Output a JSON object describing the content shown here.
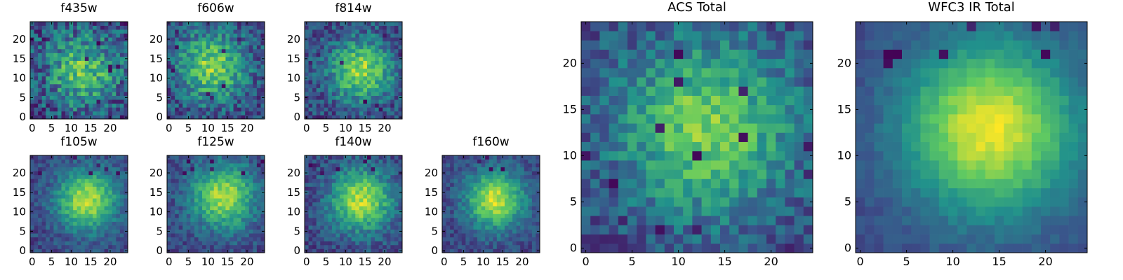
{
  "figure": {
    "colormap": "viridis",
    "colormap_stops": [
      "#440154",
      "#3b528b",
      "#21918c",
      "#5ec962",
      "#fde725"
    ],
    "axis_ticks": {
      "x": [
        0,
        5,
        10,
        15,
        20
      ],
      "y": [
        0,
        5,
        10,
        15,
        20
      ],
      "extent": [
        -0.5,
        24.5
      ]
    }
  },
  "chart_data": [
    {
      "id": "f435w",
      "type": "heatmap",
      "title": "f435w",
      "grid_size": [
        25,
        25
      ],
      "xlim": [
        -0.5,
        24.5
      ],
      "ylim": [
        -0.5,
        24.5
      ],
      "xticks": [
        0,
        5,
        10,
        15,
        20
      ],
      "yticks": [
        0,
        5,
        10,
        15,
        20
      ],
      "seed": 11,
      "profile": {
        "peak": 0.72,
        "center": [
          13,
          12
        ],
        "sigma": 40,
        "noise": 0.46,
        "dark_pixels": 10,
        "dark_region": "random"
      }
    },
    {
      "id": "f606w",
      "type": "heatmap",
      "title": "f606w",
      "grid_size": [
        25,
        25
      ],
      "xlim": [
        -0.5,
        24.5
      ],
      "ylim": [
        -0.5,
        24.5
      ],
      "xticks": [
        0,
        5,
        10,
        15,
        20
      ],
      "yticks": [
        0,
        5,
        10,
        15,
        20
      ],
      "seed": 23,
      "profile": {
        "peak": 0.8,
        "center": [
          11,
          13
        ],
        "sigma": 38,
        "noise": 0.38,
        "dark_pixels": 9,
        "dark_region": "random"
      }
    },
    {
      "id": "f814w",
      "type": "heatmap",
      "title": "f814w",
      "grid_size": [
        25,
        25
      ],
      "xlim": [
        -0.5,
        24.5
      ],
      "ylim": [
        -0.5,
        24.5
      ],
      "xticks": [
        0,
        5,
        10,
        15,
        20
      ],
      "yticks": [
        0,
        5,
        10,
        15,
        20
      ],
      "seed": 37,
      "profile": {
        "peak": 0.82,
        "center": [
          14,
          12
        ],
        "sigma": 32,
        "noise": 0.34,
        "dark_pixels": 8,
        "dark_region": "random"
      }
    },
    {
      "id": "f105w",
      "type": "heatmap",
      "title": "f105w",
      "grid_size": [
        25,
        25
      ],
      "xlim": [
        -0.5,
        24.5
      ],
      "ylim": [
        -0.5,
        24.5
      ],
      "xticks": [
        0,
        5,
        10,
        15,
        20
      ],
      "yticks": [
        0,
        5,
        10,
        15,
        20
      ],
      "seed": 41,
      "profile": {
        "peak": 0.9,
        "center": [
          14,
          13
        ],
        "sigma": 28,
        "noise": 0.22,
        "dark_pixels": 6,
        "dark_region": "top"
      }
    },
    {
      "id": "f125w",
      "type": "heatmap",
      "title": "f125w",
      "grid_size": [
        25,
        25
      ],
      "xlim": [
        -0.5,
        24.5
      ],
      "ylim": [
        -0.5,
        24.5
      ],
      "xticks": [
        0,
        5,
        10,
        15,
        20
      ],
      "yticks": [
        0,
        5,
        10,
        15,
        20
      ],
      "seed": 53,
      "profile": {
        "peak": 0.86,
        "center": [
          14,
          14
        ],
        "sigma": 34,
        "noise": 0.24,
        "dark_pixels": 9,
        "dark_region": "top"
      }
    },
    {
      "id": "f140w",
      "type": "heatmap",
      "title": "f140w",
      "grid_size": [
        25,
        25
      ],
      "xlim": [
        -0.5,
        24.5
      ],
      "ylim": [
        -0.5,
        24.5
      ],
      "xticks": [
        0,
        5,
        10,
        15,
        20
      ],
      "yticks": [
        0,
        5,
        10,
        15,
        20
      ],
      "seed": 67,
      "profile": {
        "peak": 0.9,
        "center": [
          14,
          13
        ],
        "sigma": 30,
        "noise": 0.26,
        "dark_pixels": 8,
        "dark_region": "top"
      }
    },
    {
      "id": "f160w",
      "type": "heatmap",
      "title": "f160w",
      "grid_size": [
        25,
        25
      ],
      "xlim": [
        -0.5,
        24.5
      ],
      "ylim": [
        -0.5,
        24.5
      ],
      "xticks": [
        0,
        5,
        10,
        15,
        20
      ],
      "yticks": [
        0,
        5,
        10,
        15,
        20
      ],
      "seed": 79,
      "profile": {
        "peak": 0.92,
        "center": [
          13,
          13
        ],
        "sigma": 26,
        "noise": 0.22,
        "dark_pixels": 4,
        "dark_region": "top"
      }
    },
    {
      "id": "acs_total",
      "type": "heatmap",
      "title": "ACS Total",
      "grid_size": [
        25,
        25
      ],
      "xlim": [
        -0.5,
        24.5
      ],
      "ylim": [
        -0.5,
        24.5
      ],
      "xticks": [
        0,
        5,
        10,
        15,
        20
      ],
      "yticks": [
        0,
        5,
        10,
        15,
        20
      ],
      "seed": 97,
      "profile": {
        "peak": 0.78,
        "center": [
          13,
          13
        ],
        "sigma": 45,
        "noise": 0.3,
        "dark_pixels": 14,
        "dark_region": "random"
      }
    },
    {
      "id": "wfc3_ir_total",
      "type": "heatmap",
      "title": "WFC3 IR Total",
      "grid_size": [
        25,
        25
      ],
      "xlim": [
        -0.5,
        24.5
      ],
      "ylim": [
        -0.5,
        24.5
      ],
      "xticks": [
        0,
        5,
        10,
        15,
        20
      ],
      "yticks": [
        0,
        5,
        10,
        15,
        20
      ],
      "seed": 113,
      "profile": {
        "peak": 0.97,
        "center": [
          14,
          13
        ],
        "sigma": 42,
        "noise": 0.1,
        "dark_pixels": 8,
        "dark_region": "top"
      }
    }
  ]
}
